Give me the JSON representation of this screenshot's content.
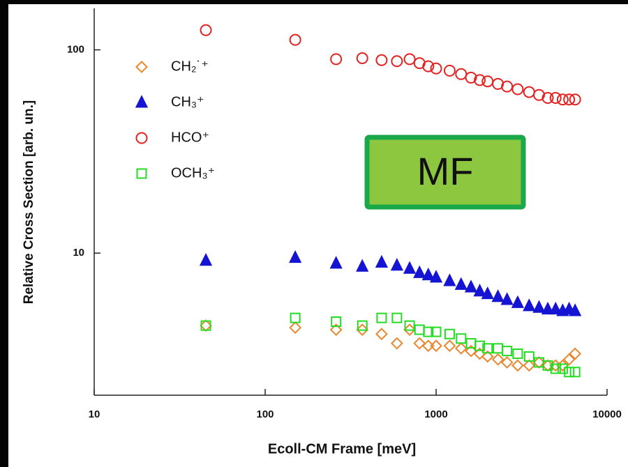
{
  "chart_data": {
    "type": "scatter",
    "xlabel": "Ecoll-CM Frame [meV]",
    "ylabel": "Relative Cross Section [arb. un.]",
    "annotation": "MF",
    "x": [
      45,
      150,
      260,
      370,
      480,
      590,
      700,
      800,
      900,
      1000,
      1200,
      1400,
      1600,
      1800,
      2000,
      2300,
      2600,
      3000,
      3500,
      4000,
      4500,
      5000,
      5500,
      6000,
      6500
    ],
    "series": [
      {
        "name": "CH₂˙⁺",
        "color": "#e8872e",
        "marker": "diamond",
        "filled": false,
        "values": [
          4.4,
          4.3,
          4.2,
          4.2,
          4.0,
          3.6,
          4.2,
          3.6,
          3.5,
          3.5,
          3.5,
          3.4,
          3.3,
          3.2,
          3.1,
          3.0,
          2.9,
          2.8,
          2.8,
          2.9,
          2.8,
          2.8,
          2.8,
          3.0,
          3.2
        ]
      },
      {
        "name": "CH₃⁺",
        "color": "#1414d2",
        "marker": "triangle",
        "filled": true,
        "values": [
          9.2,
          9.5,
          8.9,
          8.6,
          9.0,
          8.7,
          8.4,
          8.0,
          7.8,
          7.6,
          7.3,
          7.0,
          6.8,
          6.5,
          6.3,
          6.1,
          5.9,
          5.7,
          5.5,
          5.4,
          5.3,
          5.3,
          5.2,
          5.3,
          5.2
        ]
      },
      {
        "name": "HCO⁺",
        "color": "#e52222",
        "marker": "circle",
        "filled": false,
        "values": [
          125,
          112,
          90,
          91,
          89,
          88,
          90,
          86,
          83,
          81,
          79,
          76,
          73,
          71,
          70,
          68,
          66,
          64,
          62,
          60,
          58,
          58,
          57,
          57,
          57
        ]
      },
      {
        "name": "OCH₃⁺",
        "color": "#22dd22",
        "marker": "square",
        "filled": false,
        "values": [
          4.4,
          4.8,
          4.6,
          4.4,
          4.8,
          4.8,
          4.4,
          4.2,
          4.1,
          4.1,
          4.0,
          3.8,
          3.6,
          3.5,
          3.4,
          3.4,
          3.3,
          3.2,
          3.1,
          2.9,
          2.8,
          2.7,
          2.7,
          2.6,
          2.6
        ]
      }
    ],
    "xlim": [
      10,
      10000
    ],
    "ylim": [
      2,
      160
    ],
    "xticks": [
      10,
      100,
      1000,
      10000
    ],
    "yticks": [
      10,
      100
    ],
    "xscale": "log",
    "yscale": "log",
    "legend": "upper left"
  }
}
